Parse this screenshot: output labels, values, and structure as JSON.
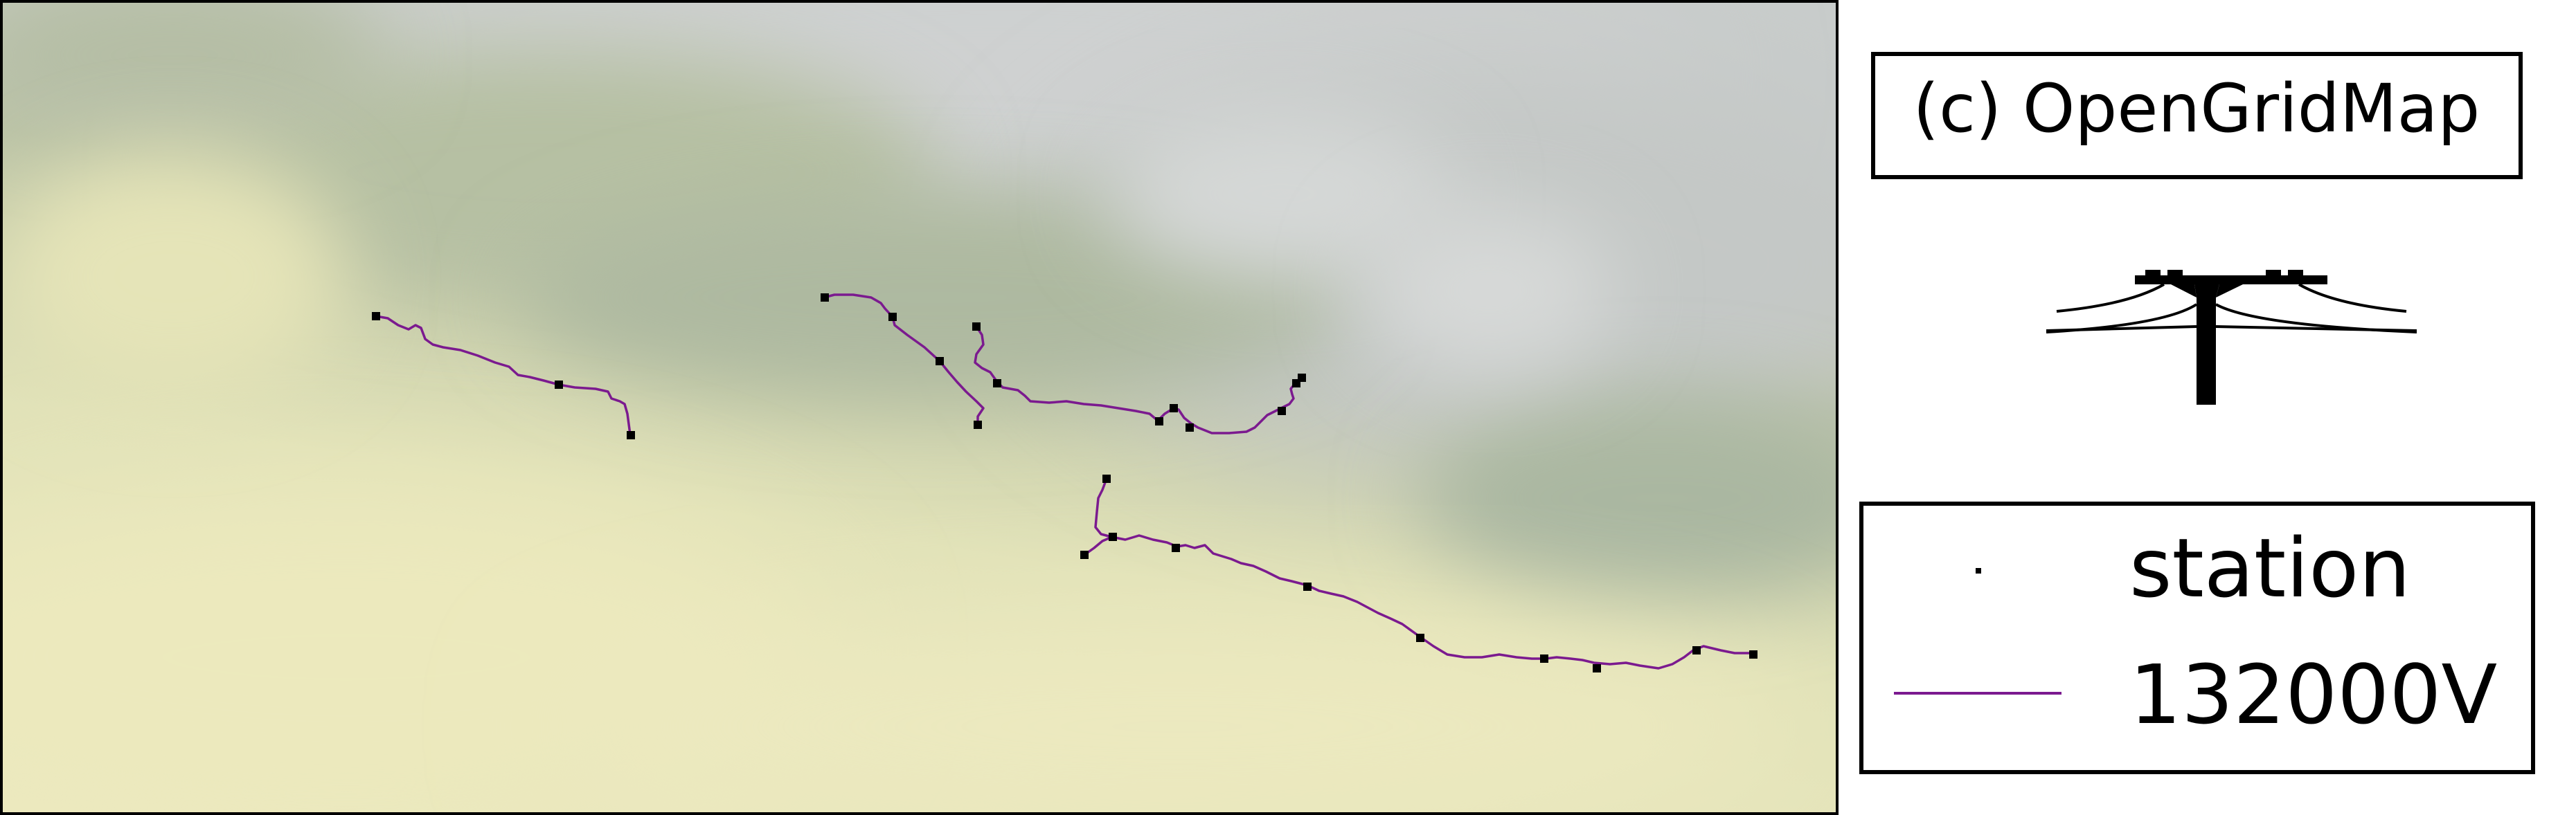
{
  "copyright": "(c) OpenGridMap",
  "logo": {
    "icon": "power-pylon-icon"
  },
  "legend": {
    "items": [
      {
        "label": "station",
        "symbol": "square-marker",
        "color": "#000000"
      },
      {
        "label": "132000V",
        "symbol": "line",
        "color": "#7b1a8f"
      }
    ]
  },
  "map": {
    "colors": {
      "line": "#7b1a8f",
      "station": "#000000",
      "lowland": "#ece9bf",
      "hills": "#aab49c",
      "highland": "#cbcfcf"
    }
  }
}
